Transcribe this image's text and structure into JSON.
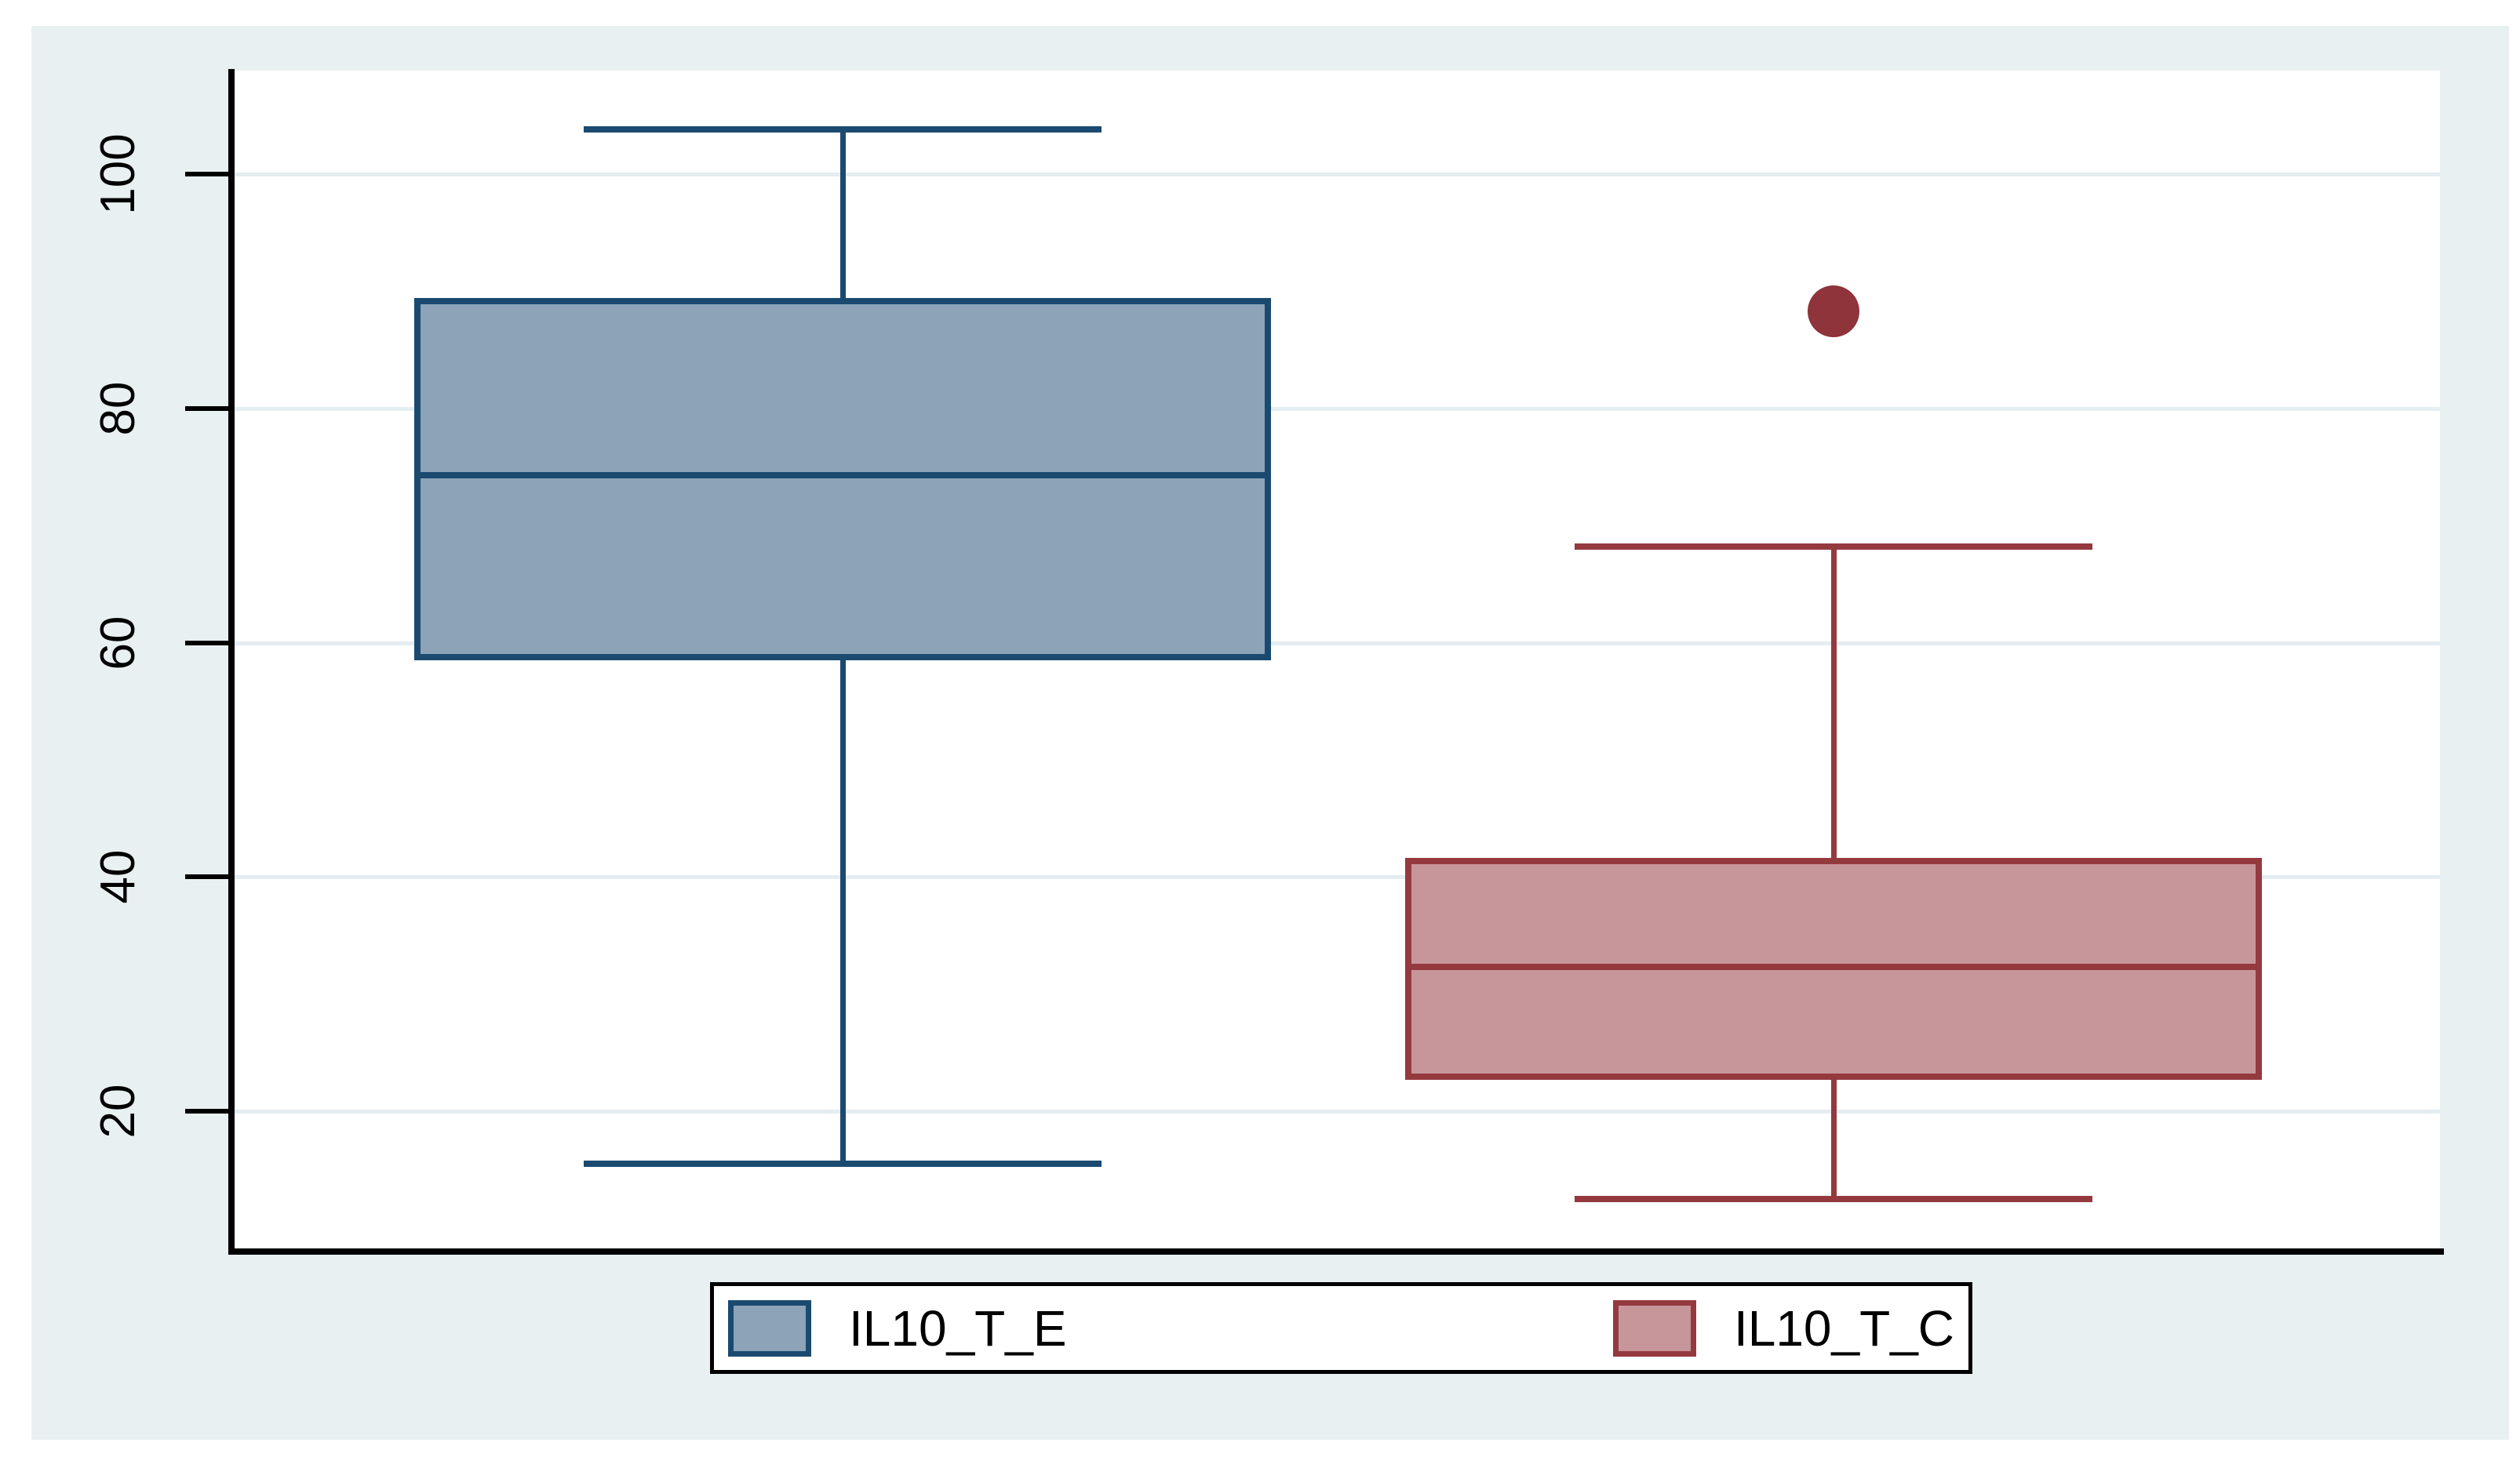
{
  "figure": {
    "background_color": "#e9f0f2",
    "plot_background_color": "#ffffff",
    "gridline_color": "#e4edf1",
    "axis_color": "#000000"
  },
  "legend": {
    "entries": [
      {
        "label": "IL10_T_E",
        "fill": "#8ca3b8",
        "border": "#1b4a70"
      },
      {
        "label": "IL10_T_C",
        "fill": "#c7969b",
        "border": "#943a3f"
      }
    ]
  },
  "chart_data": {
    "type": "boxplot",
    "title": "",
    "xlabel": "",
    "ylabel": "",
    "yticks": [
      20,
      40,
      60,
      80,
      100
    ],
    "ylim": [
      8,
      109
    ],
    "grid": true,
    "legend_position": "bottom-center",
    "series": [
      {
        "name": "IL10_T_E",
        "fill": "#8ca3b8",
        "border": "#1b4a70",
        "whisker_low": 15.5,
        "q1": 58.5,
        "median": 74.3,
        "q3": 89.4,
        "whisker_high": 103.8,
        "outliers": []
      },
      {
        "name": "IL10_T_C",
        "fill": "#c7969b",
        "border": "#943a3f",
        "whisker_low": 12.5,
        "q1": 22.7,
        "median": 32.3,
        "q3": 41.6,
        "whisker_high": 68.2,
        "outliers": [
          88.3
        ]
      }
    ]
  }
}
